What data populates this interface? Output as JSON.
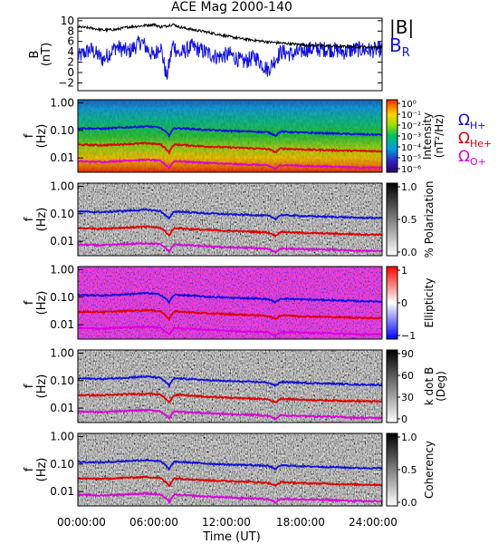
{
  "chart_data": [
    {
      "type": "line",
      "title": "ACE Mag 2000-140",
      "ylabel": "B",
      "yunit": "(nT)",
      "xlabel": "Time (UT)",
      "x_tick_labels": [
        "00:00:00",
        "06:00:00",
        "12:00:00",
        "18:00:00",
        "24:00:00"
      ],
      "xlim": [
        0,
        24
      ],
      "ylim": [
        -3.5,
        10.5
      ],
      "yticks": [
        -2,
        0,
        2,
        4,
        6,
        8,
        10
      ],
      "legend": [
        {
          "label": "|B|",
          "color": "#000000"
        },
        {
          "label": "B",
          "subscript": "R",
          "color": "#1010dd"
        }
      ],
      "series": [
        {
          "name": "|B|",
          "color": "#000000",
          "x": [
            0,
            1,
            2,
            3,
            4,
            5,
            6,
            6.5,
            7,
            7.5,
            8,
            9,
            10,
            11,
            12,
            13,
            14,
            15,
            16,
            17,
            18,
            19,
            20,
            21,
            22,
            23,
            24
          ],
          "values": [
            8.8,
            8.6,
            8.2,
            8.3,
            8.8,
            9.0,
            9.3,
            8.8,
            9.0,
            9.3,
            8.8,
            8.3,
            7.9,
            7.4,
            6.9,
            6.5,
            6.2,
            5.9,
            5.7,
            5.5,
            5.3,
            5.2,
            5.1,
            5.0,
            5.0,
            4.9,
            4.9
          ]
        },
        {
          "name": "B_R",
          "color": "#1010dd",
          "x": [
            0,
            1,
            2,
            3,
            4,
            5,
            6,
            6.5,
            7,
            7.5,
            8,
            9,
            10,
            11,
            12,
            13,
            14,
            15,
            16,
            17,
            18,
            19,
            20,
            21,
            22,
            23,
            24
          ],
          "values": [
            3.0,
            4.5,
            2.5,
            5.0,
            4.0,
            6.0,
            3.0,
            5.5,
            -1.0,
            5.5,
            3.5,
            5.0,
            4.0,
            3.0,
            3.5,
            2.0,
            3.0,
            0.5,
            4.0,
            3.5,
            4.5,
            4.5,
            4.5,
            4.0,
            4.5,
            4.3,
            4.5
          ]
        }
      ]
    },
    {
      "type": "heatmap",
      "ylabel": "f",
      "yunit": "(Hz)",
      "ytick_labels": [
        "1.00",
        "0.10",
        "0.01"
      ],
      "ylim": [
        0.003,
        1.3
      ],
      "yscale": "log",
      "xlim": [
        0,
        24
      ],
      "colorbar": {
        "label": "Intensity",
        "unit": "(nT²/Hz)",
        "tick_labels": [
          "10⁰",
          "10⁻¹",
          "10⁻²",
          "10⁻³",
          "10⁻⁴",
          "10⁻⁵",
          "10⁻⁶"
        ],
        "colormap": "rainbow"
      },
      "overlay_legend": [
        {
          "label": "Ω",
          "subscript": "H+",
          "color": "#1010dd"
        },
        {
          "label": "Ω",
          "subscript": "He+",
          "color": "#e00000"
        },
        {
          "label": "Ω",
          "subscript": "O+",
          "color": "#dd00dd"
        }
      ]
    },
    {
      "type": "heatmap",
      "ylabel": "f",
      "yunit": "(Hz)",
      "ytick_labels": [
        "1.00",
        "0.10",
        "0.01"
      ],
      "yscale": "log",
      "colorbar": {
        "label": "% Polarization",
        "tick_labels": [
          "1.0",
          "0.5",
          "0.0"
        ],
        "colormap": "gray"
      }
    },
    {
      "type": "heatmap",
      "ylabel": "f",
      "yunit": "(Hz)",
      "ytick_labels": [
        "1.00",
        "0.10",
        "0.01"
      ],
      "yscale": "log",
      "colorbar": {
        "label": "Ellipticity",
        "tick_labels": [
          "1",
          "0",
          "−1"
        ],
        "colormap": "blue-white-red"
      }
    },
    {
      "type": "heatmap",
      "ylabel": "f",
      "yunit": "(Hz)",
      "ytick_labels": [
        "1.00",
        "0.10",
        "0.01"
      ],
      "yscale": "log",
      "colorbar": {
        "label": "k dot B",
        "unit": "(Deg)",
        "tick_labels": [
          "90",
          "60",
          "30",
          "0"
        ],
        "colormap": "gray"
      }
    },
    {
      "type": "heatmap",
      "ylabel": "f",
      "yunit": "(Hz)",
      "ytick_labels": [
        "1.00",
        "0.10",
        "0.01"
      ],
      "yscale": "log",
      "colorbar": {
        "label": "Coherency",
        "tick_labels": [
          "1.0",
          "0.5",
          "0.0"
        ],
        "colormap": "gray"
      }
    }
  ],
  "gyrofrequency_lines": {
    "x": [
      0,
      2,
      4,
      5.5,
      6.5,
      7.2,
      7.6,
      8,
      10,
      12,
      14,
      15,
      15.6,
      16,
      18,
      20,
      22,
      24
    ],
    "H+": [
      0.12,
      0.115,
      0.13,
      0.14,
      0.125,
      0.065,
      0.12,
      0.12,
      0.105,
      0.095,
      0.09,
      0.085,
      0.065,
      0.09,
      0.082,
      0.078,
      0.072,
      0.07
    ],
    "He+": [
      0.03,
      0.029,
      0.032,
      0.034,
      0.031,
      0.016,
      0.03,
      0.03,
      0.026,
      0.024,
      0.022,
      0.021,
      0.016,
      0.022,
      0.02,
      0.019,
      0.018,
      0.0175
    ],
    "O+": [
      0.0075,
      0.0072,
      0.008,
      0.0085,
      0.0078,
      0.0042,
      0.0076,
      0.0075,
      0.0066,
      0.006,
      0.0056,
      0.0053,
      0.004,
      0.0055,
      0.0051,
      0.0049,
      0.0045,
      0.0044
    ],
    "colors": {
      "H+": "#1010dd",
      "He+": "#e00000",
      "O+": "#dd00dd"
    }
  }
}
